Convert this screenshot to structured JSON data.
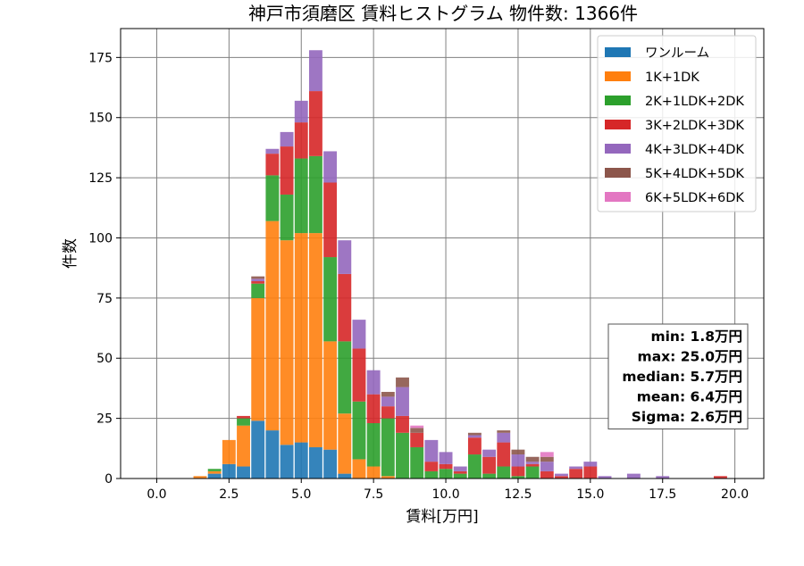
{
  "chart_data": {
    "type": "bar",
    "title": "神戸市須磨区 賃料ヒストグラム  物件数: 1366件",
    "xlabel": "賃料[万円]",
    "ylabel": "件数",
    "xlim": [
      -1.25,
      21.0
    ],
    "ylim": [
      0,
      187
    ],
    "x_ticks": [
      0,
      2.5,
      5,
      7.5,
      10,
      12.5,
      15,
      17.5,
      20
    ],
    "x_tick_labels": [
      "0.0",
      "2.5",
      "5.0",
      "7.5",
      "10.0",
      "12.5",
      "15.0",
      "17.5",
      "20.0"
    ],
    "y_ticks": [
      0,
      25,
      50,
      75,
      100,
      125,
      150,
      175
    ],
    "y_tick_labels": [
      "0",
      "25",
      "50",
      "75",
      "100",
      "125",
      "150",
      "175"
    ],
    "grid": true,
    "legend_position": "top-right",
    "bin_width": 0.5,
    "bin_centers": [
      1.5,
      2.0,
      2.5,
      3.0,
      3.5,
      4.0,
      4.5,
      5.0,
      5.5,
      6.0,
      6.5,
      7.0,
      7.5,
      8.0,
      8.5,
      9.0,
      9.5,
      10.0,
      10.5,
      11.0,
      11.5,
      12.0,
      12.5,
      13.0,
      13.5,
      14.0,
      14.5,
      15.0,
      15.5,
      16.0,
      16.5,
      17.0,
      17.5,
      18.0,
      18.5,
      19.0,
      19.5
    ],
    "series": [
      {
        "name": "ワンルーム",
        "color": "#1f77b4",
        "values": [
          0,
          2,
          6,
          5,
          24,
          20,
          14,
          15,
          13,
          12,
          2,
          0,
          0,
          0,
          0,
          0,
          0,
          0,
          0,
          0,
          0,
          0,
          0,
          0,
          0,
          0,
          0,
          0,
          0,
          0,
          0,
          0,
          0,
          0,
          0,
          0,
          0
        ]
      },
      {
        "name": "1K+1DK",
        "color": "#ff7f0e",
        "values": [
          1,
          1,
          10,
          17,
          51,
          87,
          85,
          87,
          89,
          45,
          25,
          8,
          5,
          1,
          0,
          0,
          0,
          0,
          0,
          0,
          0,
          0,
          0,
          0,
          0,
          0,
          0,
          0,
          0,
          0,
          0,
          0,
          0,
          0,
          0,
          0,
          0
        ]
      },
      {
        "name": "2K+1LDK+2DK",
        "color": "#2ca02c",
        "values": [
          0,
          1,
          0,
          3,
          6,
          19,
          19,
          31,
          32,
          35,
          30,
          24,
          18,
          24,
          19,
          13,
          3,
          4,
          2,
          10,
          2,
          5,
          1,
          5,
          0,
          0,
          0,
          0,
          0,
          0,
          0,
          0,
          0,
          0,
          0,
          0,
          0
        ]
      },
      {
        "name": "3K+2LDK+3DK",
        "color": "#d62728",
        "values": [
          0,
          0,
          0,
          1,
          1,
          9,
          20,
          15,
          27,
          31,
          28,
          22,
          12,
          5,
          7,
          6,
          4,
          2,
          1,
          7,
          7,
          10,
          4,
          1,
          3,
          1,
          4,
          5,
          0,
          0,
          0,
          0,
          0,
          0,
          0,
          0,
          1
        ]
      },
      {
        "name": "4K+3LDK+4DK",
        "color": "#9467bd",
        "values": [
          0,
          0,
          0,
          0,
          1,
          2,
          6,
          9,
          17,
          13,
          14,
          12,
          10,
          4,
          12,
          0,
          9,
          5,
          2,
          1,
          3,
          4,
          5,
          1,
          4,
          1,
          1,
          2,
          1,
          0,
          2,
          0,
          1,
          0,
          0,
          0,
          0
        ]
      },
      {
        "name": "5K+4LDK+5DK",
        "color": "#8c564b",
        "values": [
          0,
          0,
          0,
          0,
          1,
          0,
          0,
          0,
          0,
          0,
          0,
          0,
          0,
          2,
          4,
          2,
          0,
          0,
          0,
          1,
          0,
          1,
          2,
          2,
          2,
          0,
          0,
          0,
          0,
          0,
          0,
          0,
          0,
          0,
          0,
          0,
          0
        ]
      },
      {
        "name": "6K+5LDK+6DK",
        "color": "#e377c2",
        "values": [
          0,
          0,
          0,
          0,
          0,
          0,
          0,
          0,
          0,
          0,
          0,
          0,
          0,
          0,
          0,
          1,
          0,
          0,
          0,
          0,
          0,
          0,
          0,
          0,
          2,
          0,
          0,
          0,
          0,
          0,
          0,
          0,
          0,
          0,
          0,
          0,
          0
        ]
      }
    ],
    "stats_box": {
      "position": "middle-right",
      "lines": [
        "min: 1.8万円",
        "max: 25.0万円",
        "median: 5.7万円",
        "mean: 6.4万円",
        "Sigma: 2.6万円"
      ]
    }
  }
}
